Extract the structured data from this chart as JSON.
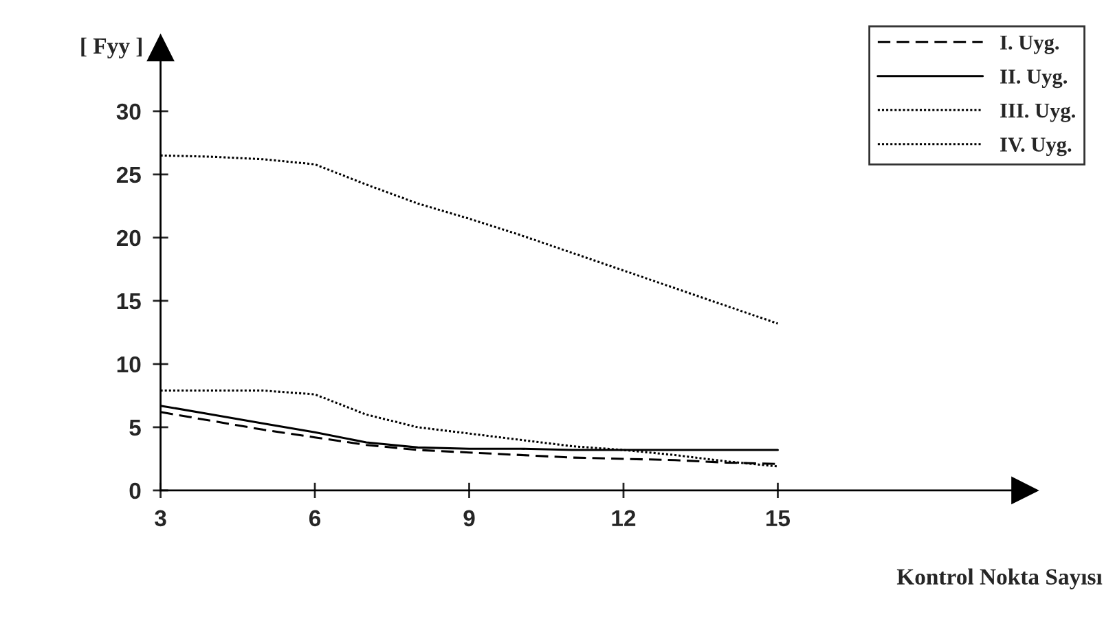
{
  "chart_data": {
    "type": "line",
    "ylabel": "[ Fyy ]",
    "xlabel": "Kontrol Nokta Sayısı",
    "x": [
      3,
      4,
      5,
      6,
      7,
      8,
      9,
      10,
      11,
      12,
      13,
      14,
      15
    ],
    "series": [
      {
        "name": "I. Uyg.",
        "color": "#000000",
        "line_style": "dashed",
        "values": [
          6.2,
          5.5,
          4.8,
          4.2,
          3.6,
          3.2,
          3.0,
          2.8,
          2.6,
          2.5,
          2.4,
          2.2,
          2.1
        ]
      },
      {
        "name": "II. Uyg.",
        "color": "#000000",
        "line_style": "solid",
        "values": [
          6.7,
          6.0,
          5.3,
          4.6,
          3.8,
          3.4,
          3.3,
          3.3,
          3.2,
          3.2,
          3.2,
          3.2,
          3.2
        ]
      },
      {
        "name": "III. Uyg.",
        "color": "#000000",
        "line_style": "dotted",
        "values": [
          7.9,
          7.9,
          7.9,
          7.6,
          6.0,
          5.0,
          4.5,
          4.0,
          3.5,
          3.2,
          2.8,
          2.3,
          1.9
        ]
      },
      {
        "name": "IV. Uyg.",
        "color": "#000000",
        "line_style": "dotted",
        "values": [
          26.5,
          26.4,
          26.2,
          25.8,
          24.2,
          22.7,
          21.5,
          20.2,
          18.8,
          17.4,
          16.0,
          14.6,
          13.2
        ]
      }
    ],
    "xlim": [
      3,
      19.8
    ],
    "ylim": [
      0,
      35
    ],
    "xticks": [
      3,
      6,
      9,
      12,
      15
    ],
    "yticks": [
      0,
      5,
      10,
      15,
      20,
      25,
      30
    ],
    "grid": false,
    "legend": "top right",
    "marker": "none"
  }
}
